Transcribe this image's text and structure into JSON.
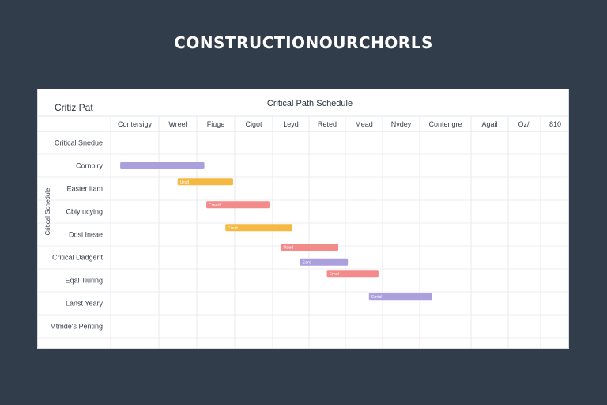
{
  "page": {
    "title": "CONSTRUCTIONOURCHORLS"
  },
  "chart_data": {
    "type": "gantt",
    "title": "Critical Path Schedule",
    "corner_label": "Critiz Pat",
    "ylabel": "Critical Schedule",
    "columns": [
      "Contersigy",
      "Wreel",
      "Fiuge",
      "Cigot",
      "Leyd",
      "Reted",
      "Mead",
      "Nvdey",
      "Contengre",
      "Agail",
      "Oz/i",
      "810"
    ],
    "rows": [
      "Critical Snedue",
      "Cornbiry",
      "Easter itam",
      "Cbiy ucying",
      "Dosi Ineae",
      "Critical Dadgerit",
      "Eqal Tiuring",
      "Lanst Yeary",
      "Mtmde's Penting"
    ],
    "colors": {
      "purple": "#ab9fdd",
      "orange": "#f4b843",
      "pink": "#f48b8b"
    },
    "tasks": [
      {
        "row": 1,
        "start": 0.25,
        "end": 2.45,
        "color": "purple",
        "label": ""
      },
      {
        "row": 1.7,
        "start": 1.75,
        "end": 3.2,
        "color": "orange",
        "label": "Uroll"
      },
      {
        "row": 2.7,
        "start": 2.5,
        "end": 4.15,
        "color": "pink",
        "label": "Creed"
      },
      {
        "row": 3.7,
        "start": 3.0,
        "end": 4.75,
        "color": "orange",
        "label": "Cmst"
      },
      {
        "row": 4.55,
        "start": 4.45,
        "end": 5.95,
        "color": "pink",
        "label": "Uaed"
      },
      {
        "row": 5.2,
        "start": 4.95,
        "end": 6.2,
        "color": "purple",
        "label": "Eard"
      },
      {
        "row": 5.7,
        "start": 5.65,
        "end": 7.0,
        "color": "pink",
        "label": "Cmei"
      },
      {
        "row": 6.7,
        "start": 6.75,
        "end": 8.4,
        "color": "purple",
        "label": "Cmid"
      }
    ]
  }
}
